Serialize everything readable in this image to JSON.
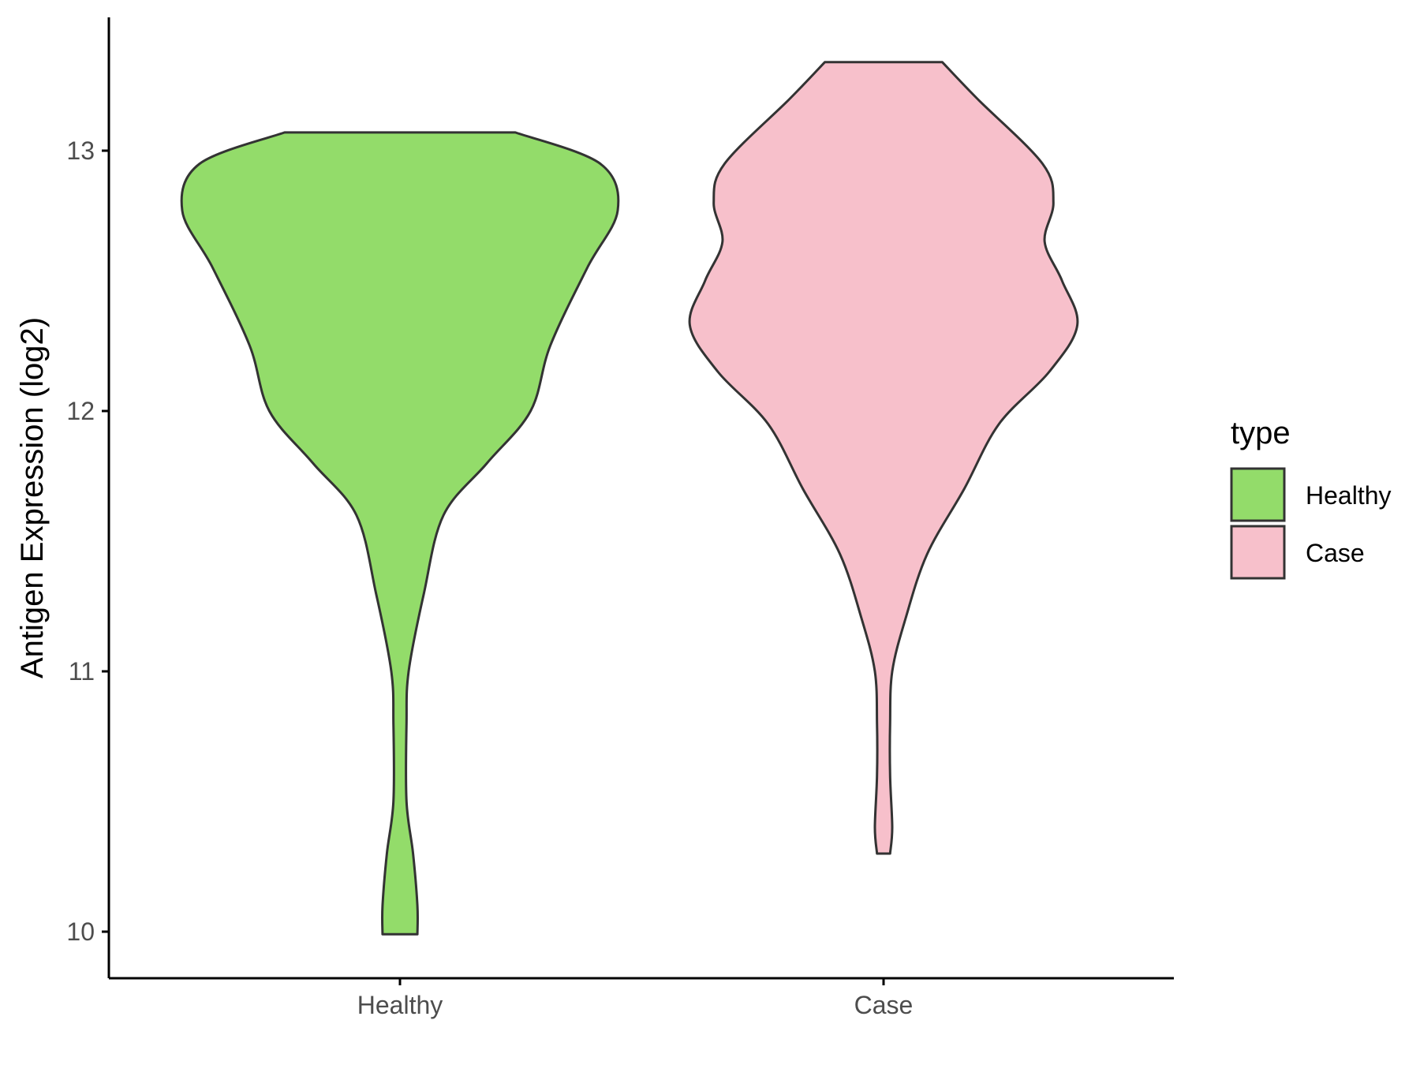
{
  "chart_data": {
    "type": "violin",
    "title": "",
    "xlabel": "",
    "ylabel": "Antigen Expression (log2)",
    "categories": [
      "Healthy",
      "Case"
    ],
    "y_ticks": [
      10,
      11,
      12,
      13
    ],
    "ylim": [
      9.82,
      13.52
    ],
    "grid": false,
    "legend": {
      "title": "type",
      "position": "right",
      "entries": [
        {
          "label": "Healthy",
          "color": "#93DC6A"
        },
        {
          "label": "Case",
          "color": "#F7C0CB"
        }
      ]
    },
    "series": [
      {
        "category": "Healthy",
        "color": "#93DC6A",
        "min": 9.99,
        "max": 13.07,
        "density_profile": [
          [
            13.07,
            0.53
          ],
          [
            12.95,
            0.92
          ],
          [
            12.77,
            1.0
          ],
          [
            12.55,
            0.86
          ],
          [
            12.25,
            0.69
          ],
          [
            12.0,
            0.6
          ],
          [
            11.8,
            0.4
          ],
          [
            11.6,
            0.2
          ],
          [
            11.3,
            0.11
          ],
          [
            11.0,
            0.04
          ],
          [
            10.8,
            0.03
          ],
          [
            10.5,
            0.03
          ],
          [
            10.3,
            0.06
          ],
          [
            10.1,
            0.08
          ],
          [
            9.99,
            0.08
          ]
        ]
      },
      {
        "category": "Case",
        "color": "#F7C0CB",
        "min": 10.3,
        "max": 13.34,
        "density_profile": [
          [
            13.34,
            0.27
          ],
          [
            13.2,
            0.43
          ],
          [
            12.95,
            0.73
          ],
          [
            12.8,
            0.78
          ],
          [
            12.65,
            0.74
          ],
          [
            12.5,
            0.82
          ],
          [
            12.33,
            0.89
          ],
          [
            12.15,
            0.76
          ],
          [
            11.95,
            0.53
          ],
          [
            11.7,
            0.37
          ],
          [
            11.45,
            0.2
          ],
          [
            11.2,
            0.1
          ],
          [
            11.0,
            0.04
          ],
          [
            10.8,
            0.03
          ],
          [
            10.6,
            0.03
          ],
          [
            10.4,
            0.04
          ],
          [
            10.3,
            0.03
          ]
        ]
      }
    ]
  }
}
